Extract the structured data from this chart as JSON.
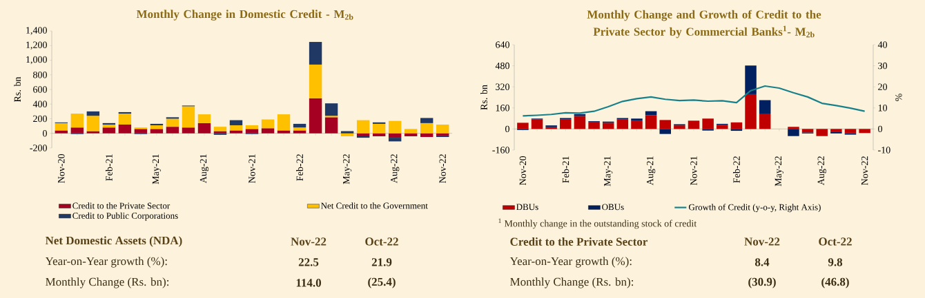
{
  "chart_data": [
    {
      "type": "bar",
      "stacked": true,
      "title": "Monthly Change in Domestic Credit - M$_{2b}$",
      "ylabel": "Rs. bn",
      "categories": [
        "Nov-20",
        null,
        null,
        "Feb-21",
        null,
        null,
        "May-21",
        null,
        null,
        "Aug-21",
        null,
        null,
        "Nov-21",
        null,
        null,
        "Feb-22",
        null,
        null,
        "May-22",
        null,
        null,
        "Aug-22",
        null,
        null,
        "Nov-22"
      ],
      "series": [
        {
          "name": "Credit to the Private Sector",
          "color": "#a50021",
          "values": [
            40,
            80,
            30,
            80,
            120,
            60,
            60,
            90,
            80,
            140,
            30,
            40,
            60,
            70,
            40,
            40,
            480,
            220,
            0,
            -40,
            -40,
            -60,
            -40,
            -50,
            -30
          ]
        },
        {
          "name": "Net Credit to the Government",
          "color": "#ffc000",
          "values": [
            100,
            190,
            210,
            40,
            150,
            20,
            50,
            110,
            290,
            120,
            60,
            70,
            50,
            120,
            220,
            40,
            460,
            20,
            -40,
            180,
            130,
            170,
            60,
            140,
            120
          ]
        },
        {
          "name": "Credit to Public Corporations",
          "color": "#1f3864",
          "values": [
            10,
            -10,
            60,
            20,
            20,
            -10,
            20,
            20,
            10,
            0,
            -20,
            70,
            -10,
            null,
            null,
            50,
            310,
            170,
            30,
            -20,
            20,
            -50,
            0,
            70,
            -20
          ]
        }
      ],
      "ylim": [
        -200,
        1400
      ],
      "yticks": [
        -200,
        0,
        200,
        400,
        600,
        800,
        {
          "value": 1000,
          "label": "1,000"
        },
        {
          "value": 1200,
          "label": "1,200"
        },
        {
          "value": 1400,
          "label": "1,400"
        }
      ],
      "legend": "bottom",
      "annotations": [
        "Net Domestic Assets (NDA)",
        "Nov-22",
        "Oct-22",
        "Year-on-Year growth (%):",
        "22.5",
        "21.9",
        "Monthly Change (Rs. bn):",
        "114.0",
        "(25.4)"
      ]
    },
    {
      "type": "bar",
      "stacked": true,
      "title": "Monthly Change and Growth of Credit to the Private Sector by Commercial Banks$^{1}$- M$_{2b}$",
      "ylabel": "Rs. bn",
      "y2label": "%",
      "categories": [
        "Nov-20",
        null,
        null,
        "Feb-21",
        null,
        null,
        "May-21",
        null,
        null,
        "Aug-21",
        null,
        null,
        "Nov-21",
        null,
        null,
        "Feb-22",
        null,
        null,
        "May-22",
        null,
        null,
        "Aug-22",
        null,
        null,
        "Nov-22"
      ],
      "series": [
        {
          "name": "DBUs",
          "color": "#c00000",
          "values": [
            47,
            74,
            14,
            74,
            99,
            54,
            47,
            74,
            61,
            104,
            68,
            27,
            63,
            79,
            32,
            50,
            264,
            117,
            null,
            16,
            -27,
            -54,
            -20,
            -32,
            -31
          ]
        },
        {
          "name": "OBUs",
          "color": "#002060",
          "values": [
            -8,
            5,
            13,
            9,
            14,
            5,
            9,
            9,
            18,
            31,
            -38,
            9,
            0,
            -12,
            7,
            -14,
            218,
            102,
            0,
            -54,
            -7,
            0,
            -14,
            -11,
            0
          ]
        },
        {
          "name": "Growth of Credit (y-o-y, Right Axis)",
          "type": "line",
          "axis": "y2",
          "color": "#17808a",
          "values": [
            6.2,
            6.5,
            6.9,
            7.7,
            7.5,
            8.4,
            10.6,
            13.1,
            14.4,
            15.2,
            14.1,
            13.5,
            13.7,
            13.2,
            13.4,
            12.5,
            18.2,
            20.4,
            19.4,
            17.2,
            15.2,
            12.2,
            11.1,
            9.9,
            8.4
          ]
        }
      ],
      "ylim": [
        -160,
        640
      ],
      "yticks": [
        -160,
        0,
        160,
        320,
        480,
        640
      ],
      "y2lim": [
        -10,
        40
      ],
      "y2ticks": [
        -10,
        0,
        10,
        20,
        30,
        40
      ],
      "legend": "bottom",
      "annotations": [
        "$^{1}$ Monthly change in the outstanding stock of credit",
        "Credit to the Private Sector",
        "Nov-22",
        "Oct-22",
        "Year-on-Year growth (%):",
        "8.4",
        "9.8",
        "Monthly Change (Rs. bn):",
        "(30.9)",
        "(46.8)"
      ]
    }
  ]
}
